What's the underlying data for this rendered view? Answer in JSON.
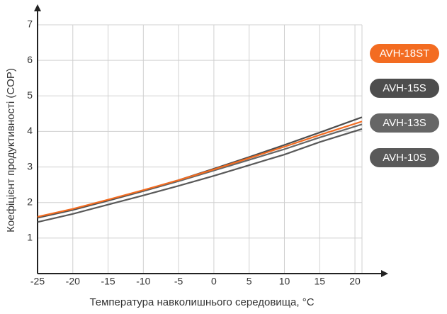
{
  "chart_data": {
    "type": "line",
    "xlabel": "Температура навколишнього середовища, °С",
    "ylabel": "Коефіцієнт продуктивності (COP)",
    "x": [
      -25,
      -20,
      -15,
      -10,
      -5,
      0,
      5,
      10,
      15,
      21
    ],
    "series": [
      {
        "name": "AVH-18ST",
        "color": "#f36c21",
        "values": [
          1.6,
          1.82,
          2.08,
          2.35,
          2.63,
          2.93,
          3.25,
          3.57,
          3.9,
          4.28
        ]
      },
      {
        "name": "AVH-15S",
        "color": "#4d4d4d",
        "values": [
          1.58,
          1.8,
          2.06,
          2.34,
          2.63,
          2.95,
          3.28,
          3.62,
          3.97,
          4.4
        ]
      },
      {
        "name": "AVH-13S",
        "color": "#666666",
        "values": [
          1.57,
          1.79,
          2.05,
          2.32,
          2.6,
          2.9,
          3.2,
          3.5,
          3.83,
          4.2
        ]
      },
      {
        "name": "AVH-10S",
        "color": "#595959",
        "values": [
          1.45,
          1.68,
          1.94,
          2.2,
          2.47,
          2.75,
          3.05,
          3.35,
          3.7,
          4.07
        ]
      }
    ],
    "xlim": [
      -25,
      21
    ],
    "ylim": [
      0,
      7
    ],
    "xticks": [
      -25,
      -20,
      -15,
      -10,
      -5,
      0,
      5,
      10,
      15,
      20
    ],
    "yticks": [
      1,
      2,
      3,
      4,
      5,
      6,
      7
    ],
    "grid": true
  }
}
